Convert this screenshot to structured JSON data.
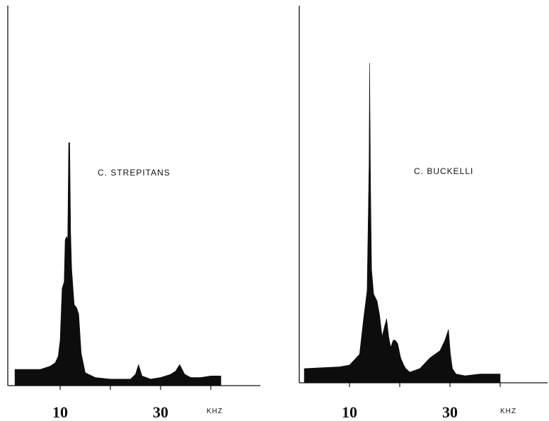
{
  "chart_data": [
    {
      "type": "area",
      "title": "C. STREPITANS",
      "xlabel": "KHZ",
      "ylabel": "",
      "xlim": [
        1,
        42
      ],
      "ylim": [
        0,
        1
      ],
      "x_ticks": [
        10,
        20,
        30,
        40
      ],
      "x_tick_labels": [
        "10",
        "",
        "30",
        ""
      ],
      "grid": false,
      "series": [
        {
          "x": [
            1,
            6,
            8,
            9,
            9.6,
            10,
            10.4,
            10.8,
            11,
            11.3,
            11.5,
            11.7,
            11.9,
            12.1,
            12.3,
            12.8,
            13.3,
            13.7,
            14.2,
            15,
            17,
            20,
            24,
            25,
            25.6,
            26.3,
            28,
            30,
            32,
            33,
            33.8,
            34.8,
            36,
            38,
            40,
            42
          ],
          "y": [
            0.05,
            0.05,
            0.06,
            0.07,
            0.09,
            0.14,
            0.3,
            0.32,
            0.45,
            0.46,
            0.45,
            0.75,
            0.75,
            0.47,
            0.36,
            0.25,
            0.24,
            0.22,
            0.1,
            0.04,
            0.025,
            0.02,
            0.02,
            0.035,
            0.065,
            0.03,
            0.02,
            0.025,
            0.035,
            0.045,
            0.065,
            0.035,
            0.025,
            0.025,
            0.03,
            0.03
          ]
        }
      ]
    },
    {
      "type": "area",
      "title": "C. BUCKELLI",
      "xlabel": "KHZ",
      "ylabel": "",
      "xlim": [
        1,
        40
      ],
      "ylim": [
        0,
        1
      ],
      "x_ticks": [
        10,
        20,
        30,
        40
      ],
      "x_tick_labels": [
        "10",
        "",
        "30",
        ""
      ],
      "grid": false,
      "series": [
        {
          "x": [
            1,
            8,
            10,
            12,
            12.8,
            13.5,
            13.9,
            14,
            14.2,
            14.4,
            14.8,
            15.5,
            16,
            16.5,
            17,
            17.4,
            17.8,
            18.2,
            18.7,
            19.1,
            19.6,
            20.2,
            20.8,
            21.2,
            22,
            24,
            26,
            28,
            29,
            29.7,
            30.1,
            30.5,
            31.2,
            33,
            36,
            40
          ],
          "y": [
            0.04,
            0.045,
            0.05,
            0.08,
            0.18,
            0.26,
            0.62,
            0.9,
            0.55,
            0.32,
            0.25,
            0.23,
            0.19,
            0.13,
            0.16,
            0.18,
            0.13,
            0.1,
            0.12,
            0.12,
            0.11,
            0.07,
            0.05,
            0.04,
            0.03,
            0.04,
            0.07,
            0.09,
            0.12,
            0.15,
            0.08,
            0.04,
            0.025,
            0.02,
            0.025,
            0.025
          ]
        }
      ]
    }
  ]
}
